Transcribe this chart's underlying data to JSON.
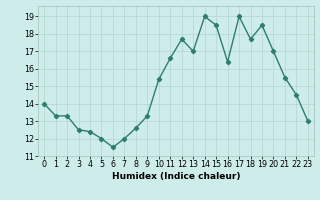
{
  "x": [
    0,
    1,
    2,
    3,
    4,
    5,
    6,
    7,
    8,
    9,
    10,
    11,
    12,
    13,
    14,
    15,
    16,
    17,
    18,
    19,
    20,
    21,
    22,
    23
  ],
  "y": [
    14.0,
    13.3,
    13.3,
    12.5,
    12.4,
    12.0,
    11.5,
    12.0,
    12.6,
    13.3,
    15.4,
    16.6,
    17.7,
    17.0,
    19.0,
    18.5,
    16.4,
    19.0,
    17.7,
    18.5,
    17.0,
    15.5,
    14.5,
    13.0
  ],
  "line_color": "#2e7d6e",
  "marker": "D",
  "marker_size": 2.2,
  "line_width": 1.0,
  "bg_color": "#ceecea",
  "grid_color": "#b8d8d4",
  "xlabel": "Humidex (Indice chaleur)",
  "ylim": [
    11,
    19.6
  ],
  "yticks": [
    11,
    12,
    13,
    14,
    15,
    16,
    17,
    18,
    19
  ],
  "xticks": [
    0,
    1,
    2,
    3,
    4,
    5,
    6,
    7,
    8,
    9,
    10,
    11,
    12,
    13,
    14,
    15,
    16,
    17,
    18,
    19,
    20,
    21,
    22,
    23
  ],
  "xlabel_fontsize": 6.5,
  "tick_fontsize": 5.8
}
